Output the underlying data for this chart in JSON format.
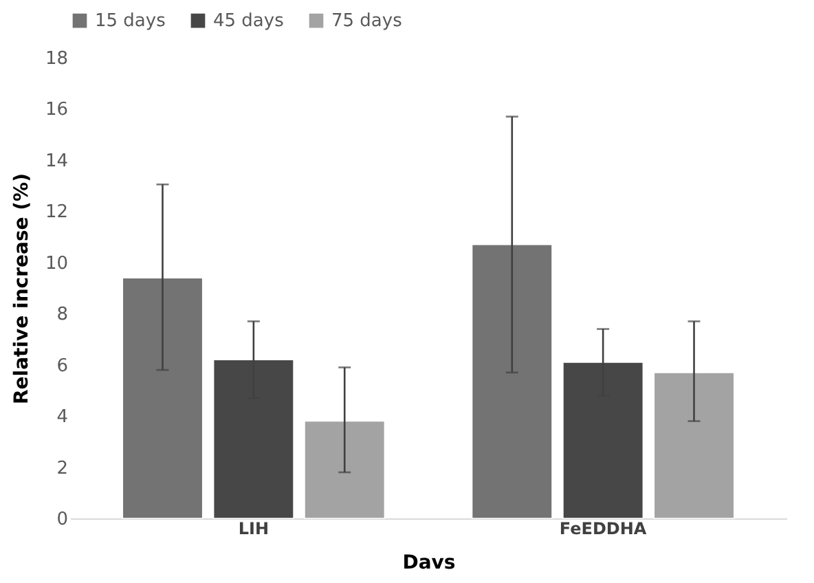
{
  "chart_data": {
    "type": "bar",
    "xlabel": "Davs",
    "ylabel": "Relative increase (%)",
    "categories": [
      "LIH",
      "FeEDDHA"
    ],
    "series": [
      {
        "name": "15 days",
        "color": "#737373",
        "values": [
          9.4,
          10.7
        ],
        "errors": [
          [
            5.8,
            13.05
          ],
          [
            5.7,
            15.7
          ]
        ]
      },
      {
        "name": "45 days",
        "color": "#474747",
        "values": [
          6.2,
          6.1
        ],
        "errors": [
          1.5,
          1.3
        ]
      },
      {
        "name": "75 days",
        "color": "#a3a3a3",
        "values": [
          3.8,
          5.7
        ],
        "errors": [
          [
            1.8,
            5.9
          ],
          [
            3.8,
            7.7
          ]
        ]
      }
    ],
    "ylim": [
      0,
      18
    ],
    "yticks": [
      0,
      2,
      4,
      6,
      8,
      10,
      12,
      14,
      16,
      18
    ],
    "grid": false,
    "legend": "top"
  }
}
